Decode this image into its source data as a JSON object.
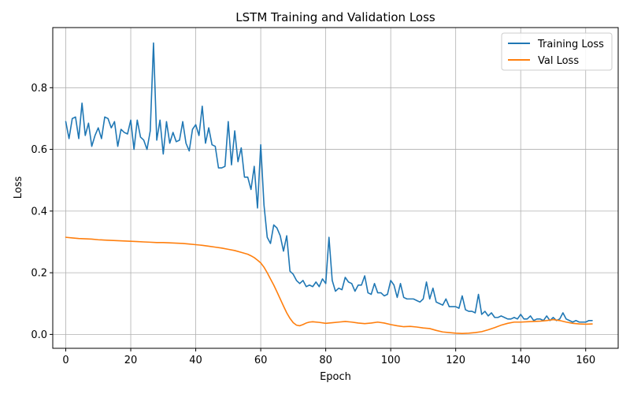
{
  "chart_data": {
    "type": "line",
    "title": "LSTM Training and Validation Loss",
    "xlabel": "Epoch",
    "ylabel": "Loss",
    "xlim": [
      -4,
      170
    ],
    "ylim": [
      -0.045,
      0.995
    ],
    "xticks": [
      0,
      20,
      40,
      60,
      80,
      100,
      120,
      140,
      160
    ],
    "yticks": [
      0.0,
      0.2,
      0.4,
      0.6,
      0.8
    ],
    "grid": true,
    "legend_position": "upper right",
    "series": [
      {
        "name": "Training Loss",
        "color": "#1f77b4",
        "x": [
          0,
          1,
          2,
          3,
          4,
          5,
          6,
          7,
          8,
          9,
          10,
          11,
          12,
          13,
          14,
          15,
          16,
          17,
          18,
          19,
          20,
          21,
          22,
          23,
          24,
          25,
          26,
          27,
          28,
          29,
          30,
          31,
          32,
          33,
          34,
          35,
          36,
          37,
          38,
          39,
          40,
          41,
          42,
          43,
          44,
          45,
          46,
          47,
          48,
          49,
          50,
          51,
          52,
          53,
          54,
          55,
          56,
          57,
          58,
          59,
          60,
          61,
          62,
          63,
          64,
          65,
          66,
          67,
          68,
          69,
          70,
          71,
          72,
          73,
          74,
          75,
          76,
          77,
          78,
          79,
          80,
          81,
          82,
          83,
          84,
          85,
          86,
          87,
          88,
          89,
          90,
          91,
          92,
          93,
          94,
          95,
          96,
          97,
          98,
          99,
          100,
          101,
          102,
          103,
          104,
          105,
          106,
          107,
          108,
          109,
          110,
          111,
          112,
          113,
          114,
          115,
          116,
          117,
          118,
          119,
          120,
          121,
          122,
          123,
          124,
          125,
          126,
          127,
          128,
          129,
          130,
          131,
          132,
          133,
          134,
          135,
          136,
          137,
          138,
          139,
          140,
          141,
          142,
          143,
          144,
          145,
          146,
          147,
          148,
          149,
          150,
          151,
          152,
          153,
          154,
          155,
          156,
          157,
          158,
          159,
          160,
          161,
          162
        ],
        "values": [
          0.69,
          0.635,
          0.7,
          0.705,
          0.635,
          0.75,
          0.645,
          0.685,
          0.61,
          0.645,
          0.67,
          0.635,
          0.705,
          0.7,
          0.67,
          0.69,
          0.61,
          0.665,
          0.655,
          0.65,
          0.695,
          0.6,
          0.695,
          0.64,
          0.63,
          0.6,
          0.66,
          0.945,
          0.63,
          0.695,
          0.585,
          0.69,
          0.62,
          0.655,
          0.625,
          0.63,
          0.69,
          0.62,
          0.595,
          0.665,
          0.68,
          0.645,
          0.74,
          0.62,
          0.67,
          0.615,
          0.61,
          0.54,
          0.54,
          0.545,
          0.69,
          0.55,
          0.66,
          0.56,
          0.605,
          0.51,
          0.51,
          0.47,
          0.545,
          0.41,
          0.615,
          0.42,
          0.315,
          0.295,
          0.355,
          0.345,
          0.32,
          0.27,
          0.32,
          0.205,
          0.195,
          0.175,
          0.165,
          0.175,
          0.155,
          0.16,
          0.155,
          0.17,
          0.155,
          0.18,
          0.165,
          0.315,
          0.175,
          0.14,
          0.15,
          0.145,
          0.185,
          0.17,
          0.165,
          0.14,
          0.16,
          0.16,
          0.19,
          0.135,
          0.13,
          0.165,
          0.135,
          0.135,
          0.125,
          0.13,
          0.175,
          0.16,
          0.12,
          0.165,
          0.12,
          0.115,
          0.115,
          0.115,
          0.11,
          0.105,
          0.115,
          0.17,
          0.115,
          0.15,
          0.105,
          0.1,
          0.095,
          0.115,
          0.09,
          0.09,
          0.09,
          0.085,
          0.125,
          0.08,
          0.075,
          0.075,
          0.07,
          0.13,
          0.065,
          0.075,
          0.06,
          0.07,
          0.055,
          0.055,
          0.06,
          0.055,
          0.05,
          0.05,
          0.055,
          0.05,
          0.065,
          0.05,
          0.05,
          0.06,
          0.045,
          0.05,
          0.05,
          0.045,
          0.06,
          0.045,
          0.055,
          0.045,
          0.05,
          0.07,
          0.05,
          0.045,
          0.04,
          0.045,
          0.04,
          0.04,
          0.04,
          0.045,
          0.045
        ]
      },
      {
        "name": "Val Loss",
        "color": "#ff7f0e",
        "x": [
          0,
          2,
          4,
          6,
          8,
          10,
          12,
          14,
          16,
          18,
          20,
          22,
          24,
          26,
          28,
          30,
          32,
          34,
          36,
          38,
          40,
          42,
          44,
          46,
          48,
          50,
          52,
          54,
          56,
          57,
          58,
          59,
          60,
          61,
          62,
          63,
          64,
          65,
          66,
          67,
          68,
          69,
          70,
          71,
          72,
          73,
          74,
          75,
          76,
          78,
          80,
          82,
          84,
          86,
          88,
          90,
          92,
          94,
          96,
          98,
          100,
          102,
          104,
          106,
          108,
          110,
          112,
          114,
          116,
          118,
          120,
          122,
          124,
          126,
          128,
          130,
          132,
          134,
          136,
          138,
          140,
          142,
          144,
          146,
          148,
          150,
          152,
          154,
          156,
          158,
          160,
          162
        ],
        "values": [
          0.315,
          0.313,
          0.311,
          0.31,
          0.309,
          0.307,
          0.306,
          0.305,
          0.304,
          0.303,
          0.302,
          0.301,
          0.3,
          0.299,
          0.298,
          0.298,
          0.297,
          0.296,
          0.295,
          0.293,
          0.291,
          0.289,
          0.286,
          0.283,
          0.28,
          0.276,
          0.272,
          0.266,
          0.26,
          0.255,
          0.249,
          0.241,
          0.232,
          0.218,
          0.2,
          0.18,
          0.16,
          0.138,
          0.115,
          0.092,
          0.07,
          0.052,
          0.038,
          0.03,
          0.028,
          0.032,
          0.037,
          0.04,
          0.041,
          0.039,
          0.036,
          0.038,
          0.04,
          0.042,
          0.04,
          0.037,
          0.035,
          0.037,
          0.04,
          0.037,
          0.032,
          0.028,
          0.025,
          0.026,
          0.024,
          0.021,
          0.019,
          0.013,
          0.008,
          0.006,
          0.004,
          0.003,
          0.004,
          0.006,
          0.009,
          0.015,
          0.022,
          0.03,
          0.036,
          0.04,
          0.04,
          0.041,
          0.042,
          0.043,
          0.045,
          0.048,
          0.045,
          0.04,
          0.036,
          0.034,
          0.033,
          0.034
        ]
      }
    ]
  }
}
